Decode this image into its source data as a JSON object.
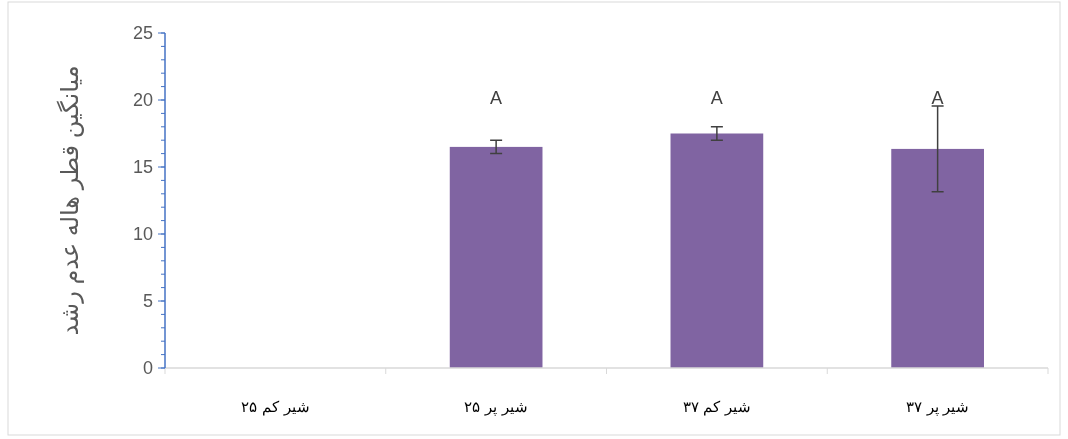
{
  "chart_data": {
    "type": "bar",
    "ylabel": "میانگین قطر هاله عدم رشد",
    "categories": [
      "شیر کم ۲۵",
      "شیر پر ۲۵",
      "شیر کم ۳۷",
      "شیر پر ۳۷"
    ],
    "values": [
      0,
      16.5,
      17.5,
      16.35
    ],
    "errors": [
      null,
      0.5,
      0.5,
      3.2
    ],
    "color": "#8064a2",
    "ylim": [
      0,
      25
    ],
    "yticks": [
      0,
      5,
      10,
      15,
      20,
      25
    ],
    "grid": false,
    "annotations": [
      "A",
      "A",
      "A"
    ]
  }
}
